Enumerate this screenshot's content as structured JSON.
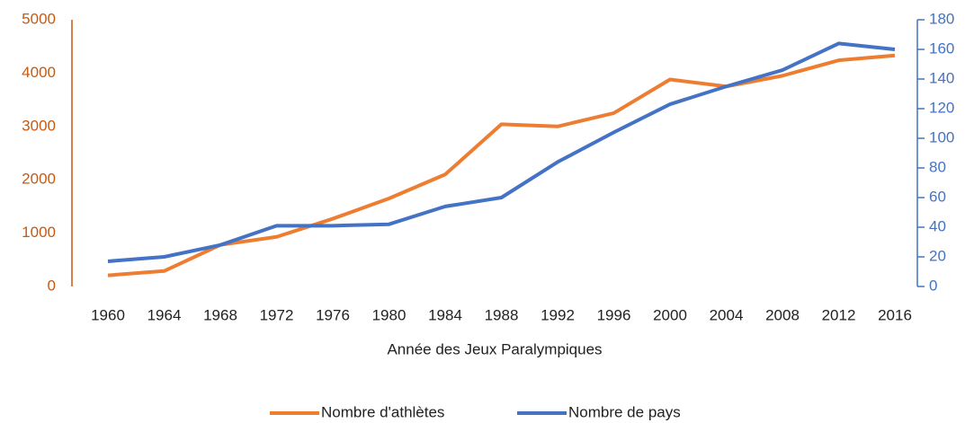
{
  "chart_data": {
    "type": "line",
    "x_label": "Année des Jeux Paralympiques",
    "categories": [
      "1960",
      "1964",
      "1968",
      "1972",
      "1976",
      "1980",
      "1984",
      "1988",
      "1992",
      "1996",
      "2000",
      "2004",
      "2008",
      "2012",
      "2016"
    ],
    "series": [
      {
        "name": "Nombre d'athlètes",
        "color": "#ed7d31",
        "axis": "y",
        "values": [
          209,
          290,
          780,
          930,
          1270,
          1650,
          2100,
          3040,
          3000,
          3250,
          3880,
          3750,
          3950,
          4240,
          4330
        ]
      },
      {
        "name": "Nombre de pays",
        "color": "#4472c4",
        "axis": "y2",
        "values": [
          17,
          20,
          28,
          41,
          41,
          42,
          54,
          60,
          84,
          104,
          123,
          135,
          146,
          164,
          160
        ]
      }
    ],
    "ylim": [
      0,
      5000
    ],
    "yticks": [
      0,
      1000,
      2000,
      3000,
      4000,
      5000
    ],
    "y_color": "#c55a11",
    "y2lim": [
      0,
      180
    ],
    "y2ticks": [
      0,
      20,
      40,
      60,
      80,
      100,
      120,
      140,
      160,
      180
    ],
    "y2_color": "#4472c4",
    "grid": false,
    "legend": "bottom"
  }
}
